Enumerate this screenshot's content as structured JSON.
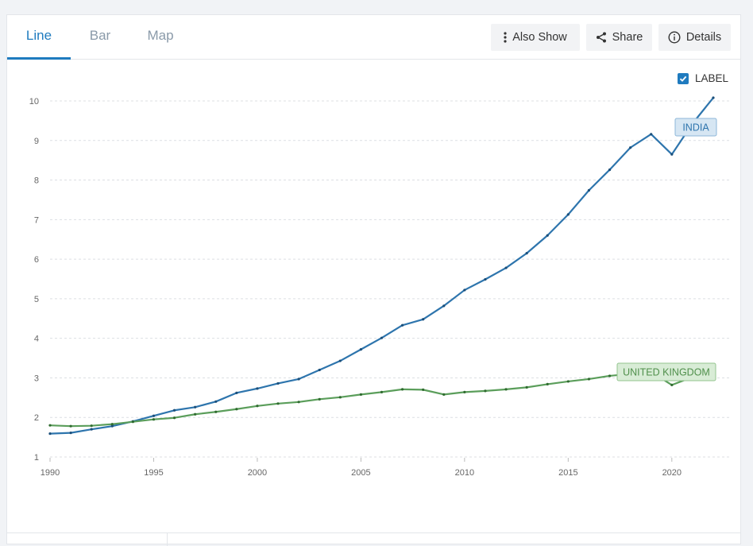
{
  "tabs": [
    {
      "label": "Line",
      "active": true
    },
    {
      "label": "Bar",
      "active": false
    },
    {
      "label": "Map",
      "active": false
    }
  ],
  "toolbar": {
    "also_show": "Also Show",
    "share": "Share",
    "details": "Details"
  },
  "label_toggle": {
    "text": "LABEL",
    "checked": true
  },
  "colors": {
    "accent": "#1f7bbf",
    "india": "#2e75ad",
    "uk": "#5b9e5b"
  },
  "chart_data": {
    "type": "line",
    "xlim": [
      1990,
      2022
    ],
    "ylim": [
      1,
      10
    ],
    "x_ticks": [
      1990,
      1995,
      2000,
      2005,
      2010,
      2015,
      2020
    ],
    "y_ticks": [
      1,
      2,
      3,
      4,
      5,
      6,
      7,
      8,
      9,
      10
    ],
    "grid": "horizontal dashed",
    "x": [
      1990,
      1991,
      1992,
      1993,
      1994,
      1995,
      1996,
      1997,
      1998,
      1999,
      2000,
      2001,
      2002,
      2003,
      2004,
      2005,
      2006,
      2007,
      2008,
      2009,
      2010,
      2011,
      2012,
      2013,
      2014,
      2015,
      2016,
      2017,
      2018,
      2019,
      2020,
      2021,
      2022
    ],
    "series": [
      {
        "name": "INDIA",
        "values": [
          1.59,
          1.61,
          1.7,
          1.78,
          1.9,
          2.04,
          2.18,
          2.26,
          2.4,
          2.62,
          2.73,
          2.86,
          2.97,
          3.2,
          3.43,
          3.72,
          4.01,
          4.33,
          4.48,
          4.82,
          5.22,
          5.49,
          5.78,
          6.15,
          6.6,
          7.13,
          7.74,
          8.26,
          8.82,
          9.16,
          8.65,
          9.43,
          10.08
        ]
      },
      {
        "name": "UNITED KINGDOM",
        "values": [
          1.8,
          1.78,
          1.79,
          1.83,
          1.89,
          1.95,
          1.99,
          2.08,
          2.14,
          2.21,
          2.29,
          2.35,
          2.39,
          2.46,
          2.51,
          2.58,
          2.64,
          2.71,
          2.7,
          2.58,
          2.64,
          2.67,
          2.71,
          2.76,
          2.84,
          2.91,
          2.97,
          3.05,
          3.1,
          3.15,
          2.82,
          3.02,
          3.14
        ]
      }
    ]
  }
}
